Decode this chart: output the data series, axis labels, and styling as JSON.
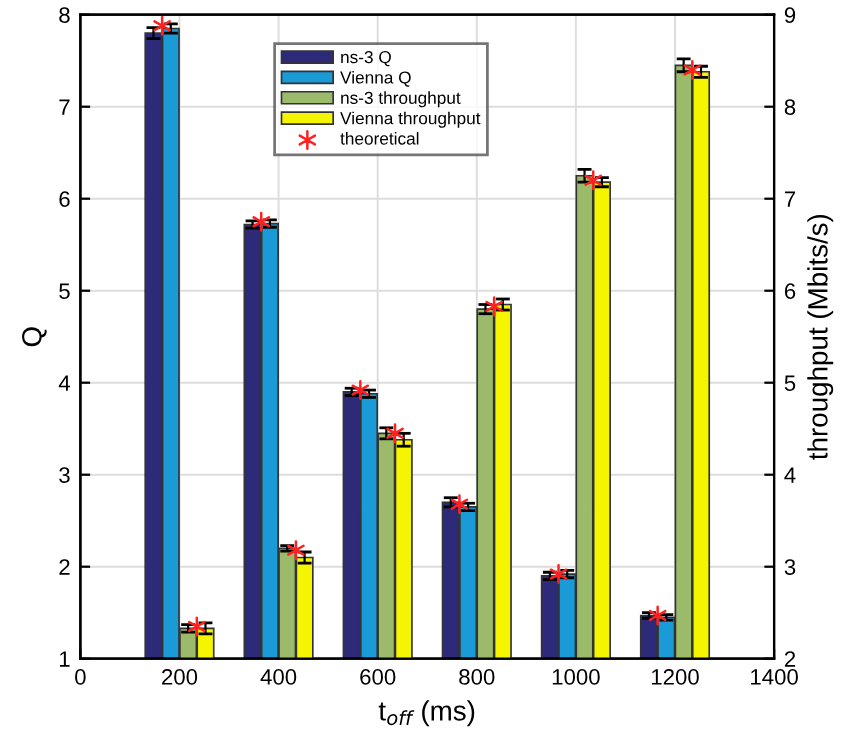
{
  "chart_data": {
    "type": "bar",
    "xlabel": "t$_{off}$ (ms)",
    "ylabel": "Q",
    "y2label": "throughput (Mbits/s)",
    "x": [
      200,
      400,
      600,
      800,
      1000,
      1200
    ],
    "xlim": [
      0,
      1400
    ],
    "xticks": [
      0,
      200,
      400,
      600,
      800,
      1000,
      1200,
      1400
    ],
    "ylim": [
      1,
      8
    ],
    "yticks": [
      1,
      2,
      3,
      4,
      5,
      6,
      7,
      8
    ],
    "y2lim": [
      2,
      9
    ],
    "y2ticks": [
      2,
      3,
      4,
      5,
      6,
      7,
      8,
      9
    ],
    "grid": true,
    "legend": "top",
    "series": [
      {
        "name": "ns-3 Q",
        "color": "#2e2a7a",
        "values": [
          7.8,
          5.72,
          3.9,
          2.7,
          1.9,
          1.47
        ],
        "errors": [
          0.06,
          0.04,
          0.04,
          0.05,
          0.04,
          0.03
        ]
      },
      {
        "name": "Vienna Q",
        "color": "#1a9ad6",
        "values": [
          7.85,
          5.73,
          3.88,
          2.65,
          1.92,
          1.45
        ],
        "errors": [
          0.05,
          0.04,
          0.04,
          0.04,
          0.04,
          0.03
        ]
      },
      {
        "name": "ns-3 throughput",
        "color": "#9bbb6a",
        "axis": "y2",
        "values": [
          2.33,
          3.2,
          4.45,
          5.8,
          7.25,
          8.45
        ],
        "errors": [
          0.04,
          0.03,
          0.06,
          0.05,
          0.07,
          0.07
        ]
      },
      {
        "name": "Vienna throughput",
        "color": "#f5f500",
        "axis": "y2",
        "values": [
          2.33,
          3.1,
          4.38,
          5.85,
          7.18,
          8.38
        ],
        "errors": [
          0.06,
          0.06,
          0.07,
          0.06,
          0.05,
          0.06
        ]
      },
      {
        "name": "theoretical",
        "type": "scatter",
        "marker": "cross",
        "color": "#ff2020",
        "x": [
          165,
          365,
          565,
          765,
          965,
          1165
        ],
        "values": [
          7.88,
          5.75,
          3.92,
          2.68,
          1.92,
          1.47
        ]
      },
      {
        "type": "scatter",
        "marker": "cross",
        "color": "#ff2020",
        "axis": "y2",
        "x": [
          235,
          435,
          635,
          835,
          1035,
          1235
        ],
        "values": [
          2.35,
          3.18,
          4.45,
          5.83,
          7.2,
          8.4
        ]
      }
    ]
  }
}
